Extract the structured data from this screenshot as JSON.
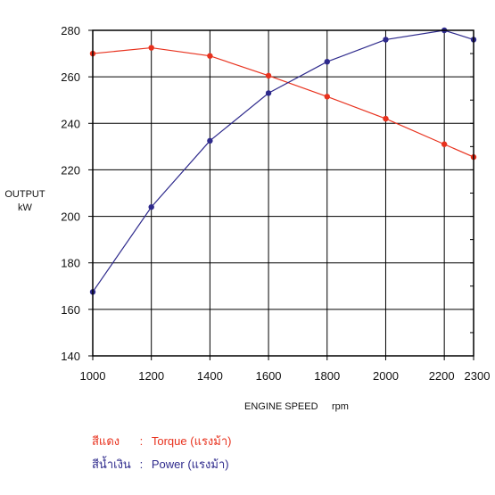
{
  "chart_data": {
    "type": "line",
    "title": "",
    "ylabel": [
      "OUTPUT",
      "kW"
    ],
    "xlabel": "ENGINE SPEED",
    "xlabel_unit": "rpm",
    "x": [
      1000,
      1200,
      1400,
      1600,
      1800,
      2000,
      2200,
      2300
    ],
    "xlim": [
      1000,
      2300
    ],
    "ylim": [
      140,
      280
    ],
    "xticks": [
      1000,
      1200,
      1400,
      1600,
      1800,
      2000,
      2200,
      2300
    ],
    "yticks": [
      140,
      160,
      180,
      200,
      220,
      240,
      260,
      280
    ],
    "grid": true,
    "series": [
      {
        "name": "Torque (แรงม้า)",
        "color": "#e8321e",
        "values": [
          270,
          272.5,
          269,
          260.5,
          251.5,
          242,
          231,
          225.5
        ]
      },
      {
        "name": "Power (แรงม้า)",
        "color": "#2e2a8c",
        "values": [
          167.5,
          204,
          232.5,
          253,
          266.5,
          276,
          280,
          276
        ]
      }
    ]
  },
  "legend": [
    {
      "key": "สีแดง",
      "colon": ":",
      "label": "Torque (แรงม้า)",
      "color": "#e8321e"
    },
    {
      "key": "สีน้ำเงิน",
      "colon": ":",
      "label": "Power (แรงม้า)",
      "color": "#2e2a8c"
    }
  ]
}
